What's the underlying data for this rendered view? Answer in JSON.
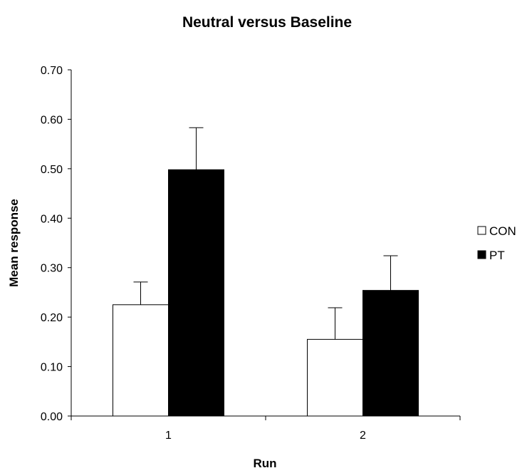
{
  "chart_data": {
    "type": "bar",
    "title": "Neutral versus Baseline",
    "xlabel": "Run",
    "ylabel": "Mean response",
    "categories": [
      "1",
      "2"
    ],
    "ylim": [
      0,
      0.7
    ],
    "ytick_step": 0.1,
    "ytick_labels": [
      "0.00",
      "0.10",
      "0.20",
      "0.30",
      "0.40",
      "0.50",
      "0.60",
      "0.70"
    ],
    "grid": false,
    "legend_position": "right",
    "series": [
      {
        "name": "CON",
        "values": [
          0.225,
          0.155
        ],
        "errors": [
          0.046,
          0.064
        ],
        "color": "#ffffff"
      },
      {
        "name": "PT",
        "values": [
          0.498,
          0.254
        ],
        "errors": [
          0.085,
          0.07
        ],
        "color": "#000000"
      }
    ]
  }
}
